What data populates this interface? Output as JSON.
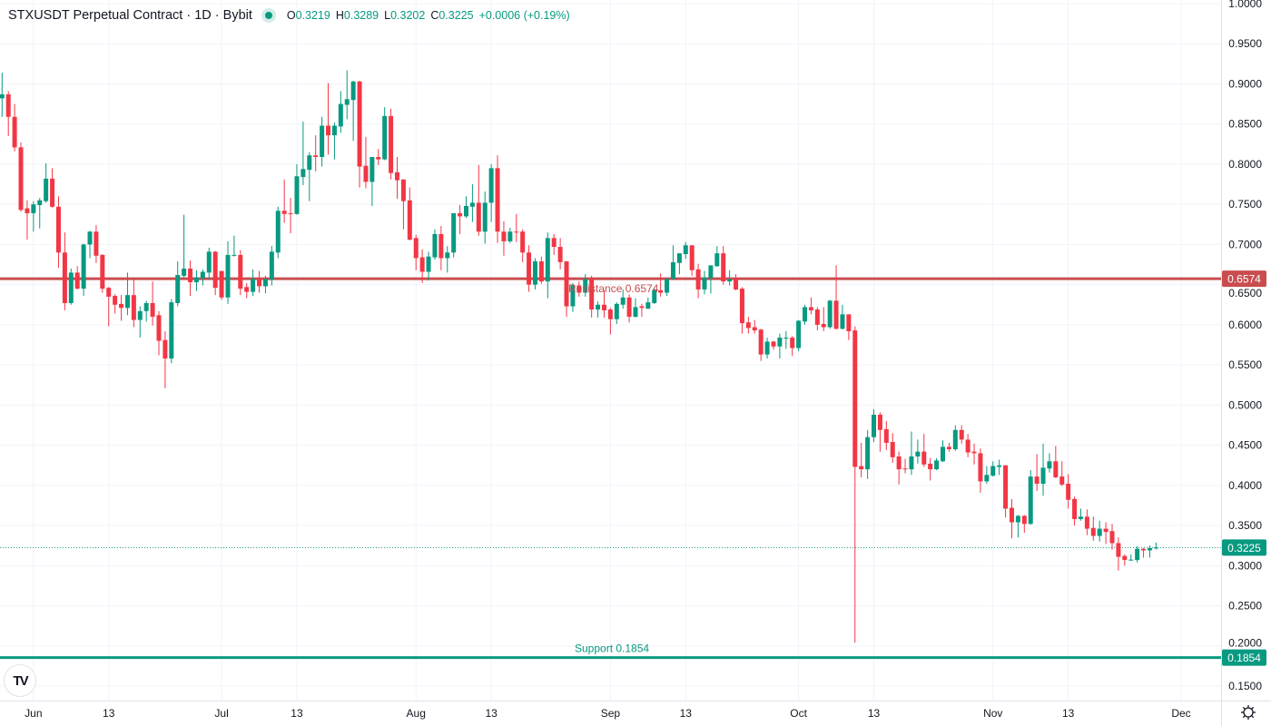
{
  "header": {
    "title": "STXUSDT Perpetual Contract · 1D · Bybit",
    "o_label": "O",
    "o_value": "0.3219",
    "h_label": "H",
    "h_value": "0.3289",
    "l_label": "L",
    "l_value": "0.3202",
    "c_label": "C",
    "c_value": "0.3225",
    "change": "+0.0006 (+0.19%)"
  },
  "logo": "TV",
  "icons": {
    "settings": "gear-icon",
    "status": "market-open-dot"
  },
  "colors": {
    "up": "#089981",
    "down": "#f23645",
    "resistance": "#c94d4f",
    "support": "#089981",
    "grid": "#f0f3fa",
    "text": "#131722"
  },
  "chart_data": {
    "type": "candlestick",
    "title": "STXUSDT Perpetual Contract · 1D · Bybit",
    "ylim": [
      0.15,
      1.0
    ],
    "y_ticks": [
      "0.1500",
      "0.2000",
      "0.2500",
      "0.3000",
      "0.3500",
      "0.4000",
      "0.4500",
      "0.5000",
      "0.5500",
      "0.6000",
      "0.6500",
      "0.7000",
      "0.7500",
      "0.8000",
      "0.8500",
      "0.9000",
      "0.9500",
      "1.0000"
    ],
    "x_ticks": [
      {
        "label": "Jun",
        "index": 5
      },
      {
        "label": "13",
        "index": 17
      },
      {
        "label": "Jul",
        "index": 35
      },
      {
        "label": "13",
        "index": 47
      },
      {
        "label": "Aug",
        "index": 66
      },
      {
        "label": "13",
        "index": 78
      },
      {
        "label": "Sep",
        "index": 97
      },
      {
        "label": "13",
        "index": 109
      },
      {
        "label": "Oct",
        "index": 127
      },
      {
        "label": "13",
        "index": 139
      },
      {
        "label": "Nov",
        "index": 158
      },
      {
        "label": "13",
        "index": 170
      },
      {
        "label": "Dec",
        "index": 188
      }
    ],
    "levels": [
      {
        "name": "resistance",
        "label": "Resistance 0.6574",
        "price": 0.6574,
        "tag": "0.6574"
      },
      {
        "name": "support",
        "label": "Support 0.1854",
        "price": 0.1854,
        "tag": "0.1854"
      }
    ],
    "last_price": {
      "price": 0.3225,
      "tag": "0.3225"
    },
    "candles": [
      [
        0.882,
        0.914,
        0.859,
        0.887
      ],
      [
        0.887,
        0.891,
        0.835,
        0.859
      ],
      [
        0.859,
        0.875,
        0.816,
        0.821
      ],
      [
        0.821,
        0.827,
        0.741,
        0.743
      ],
      [
        0.745,
        0.755,
        0.706,
        0.739
      ],
      [
        0.739,
        0.754,
        0.716,
        0.75
      ],
      [
        0.749,
        0.758,
        0.72,
        0.755
      ],
      [
        0.754,
        0.801,
        0.752,
        0.782
      ],
      [
        0.782,
        0.795,
        0.746,
        0.747
      ],
      [
        0.747,
        0.76,
        0.671,
        0.69
      ],
      [
        0.69,
        0.715,
        0.618,
        0.627
      ],
      [
        0.627,
        0.67,
        0.625,
        0.665
      ],
      [
        0.665,
        0.673,
        0.644,
        0.645
      ],
      [
        0.645,
        0.701,
        0.636,
        0.7
      ],
      [
        0.7,
        0.717,
        0.683,
        0.716
      ],
      [
        0.716,
        0.724,
        0.677,
        0.686
      ],
      [
        0.687,
        0.688,
        0.64,
        0.645
      ],
      [
        0.646,
        0.647,
        0.598,
        0.635
      ],
      [
        0.636,
        0.638,
        0.614,
        0.625
      ],
      [
        0.626,
        0.637,
        0.605,
        0.621
      ],
      [
        0.621,
        0.665,
        0.612,
        0.637
      ],
      [
        0.637,
        0.657,
        0.597,
        0.606
      ],
      [
        0.606,
        0.623,
        0.584,
        0.617
      ],
      [
        0.617,
        0.63,
        0.604,
        0.627
      ],
      [
        0.627,
        0.654,
        0.599,
        0.61
      ],
      [
        0.612,
        0.617,
        0.562,
        0.58
      ],
      [
        0.581,
        0.592,
        0.521,
        0.558
      ],
      [
        0.558,
        0.632,
        0.552,
        0.628
      ],
      [
        0.627,
        0.679,
        0.623,
        0.662
      ],
      [
        0.661,
        0.737,
        0.658,
        0.67
      ],
      [
        0.67,
        0.68,
        0.636,
        0.653
      ],
      [
        0.653,
        0.668,
        0.642,
        0.659
      ],
      [
        0.658,
        0.669,
        0.649,
        0.666
      ],
      [
        0.665,
        0.696,
        0.656,
        0.691
      ],
      [
        0.691,
        0.692,
        0.637,
        0.646
      ],
      [
        0.667,
        0.667,
        0.631,
        0.634
      ],
      [
        0.634,
        0.704,
        0.626,
        0.687
      ],
      [
        0.686,
        0.711,
        0.685,
        0.687
      ],
      [
        0.687,
        0.693,
        0.637,
        0.645
      ],
      [
        0.647,
        0.652,
        0.633,
        0.641
      ],
      [
        0.641,
        0.669,
        0.636,
        0.657
      ],
      [
        0.657,
        0.667,
        0.64,
        0.648
      ],
      [
        0.648,
        0.661,
        0.639,
        0.657
      ],
      [
        0.656,
        0.698,
        0.649,
        0.691
      ],
      [
        0.69,
        0.747,
        0.683,
        0.742
      ],
      [
        0.742,
        0.781,
        0.727,
        0.738
      ],
      [
        0.739,
        0.758,
        0.714,
        0.738
      ],
      [
        0.738,
        0.8,
        0.737,
        0.785
      ],
      [
        0.784,
        0.853,
        0.774,
        0.794
      ],
      [
        0.793,
        0.815,
        0.754,
        0.811
      ],
      [
        0.811,
        0.836,
        0.791,
        0.809
      ],
      [
        0.809,
        0.859,
        0.797,
        0.848
      ],
      [
        0.848,
        0.901,
        0.812,
        0.836
      ],
      [
        0.836,
        0.852,
        0.806,
        0.848
      ],
      [
        0.847,
        0.891,
        0.839,
        0.875
      ],
      [
        0.874,
        0.917,
        0.856,
        0.881
      ],
      [
        0.88,
        0.904,
        0.829,
        0.903
      ],
      [
        0.903,
        0.904,
        0.771,
        0.797
      ],
      [
        0.798,
        0.834,
        0.77,
        0.778
      ],
      [
        0.778,
        0.809,
        0.748,
        0.809
      ],
      [
        0.809,
        0.819,
        0.799,
        0.806
      ],
      [
        0.806,
        0.871,
        0.805,
        0.86
      ],
      [
        0.86,
        0.869,
        0.781,
        0.789
      ],
      [
        0.79,
        0.809,
        0.757,
        0.78
      ],
      [
        0.781,
        0.781,
        0.719,
        0.754
      ],
      [
        0.755,
        0.771,
        0.705,
        0.706
      ],
      [
        0.708,
        0.712,
        0.668,
        0.683
      ],
      [
        0.684,
        0.694,
        0.652,
        0.666
      ],
      [
        0.666,
        0.691,
        0.655,
        0.685
      ],
      [
        0.684,
        0.719,
        0.681,
        0.713
      ],
      [
        0.713,
        0.723,
        0.668,
        0.683
      ],
      [
        0.683,
        0.698,
        0.665,
        0.69
      ],
      [
        0.69,
        0.739,
        0.684,
        0.739
      ],
      [
        0.739,
        0.749,
        0.713,
        0.735
      ],
      [
        0.735,
        0.76,
        0.733,
        0.748
      ],
      [
        0.747,
        0.775,
        0.728,
        0.752
      ],
      [
        0.752,
        0.799,
        0.711,
        0.716
      ],
      [
        0.716,
        0.766,
        0.701,
        0.752
      ],
      [
        0.752,
        0.8,
        0.728,
        0.795
      ],
      [
        0.795,
        0.811,
        0.702,
        0.716
      ],
      [
        0.716,
        0.729,
        0.686,
        0.704
      ],
      [
        0.704,
        0.721,
        0.702,
        0.716
      ],
      [
        0.716,
        0.738,
        0.703,
        0.715
      ],
      [
        0.716,
        0.719,
        0.678,
        0.69
      ],
      [
        0.69,
        0.699,
        0.641,
        0.65
      ],
      [
        0.65,
        0.683,
        0.644,
        0.679
      ],
      [
        0.679,
        0.685,
        0.651,
        0.654
      ],
      [
        0.654,
        0.715,
        0.633,
        0.708
      ],
      [
        0.708,
        0.713,
        0.687,
        0.697
      ],
      [
        0.697,
        0.708,
        0.669,
        0.678
      ],
      [
        0.679,
        0.679,
        0.61,
        0.623
      ],
      [
        0.623,
        0.652,
        0.616,
        0.649
      ],
      [
        0.649,
        0.654,
        0.635,
        0.64
      ],
      [
        0.64,
        0.663,
        0.635,
        0.657
      ],
      [
        0.657,
        0.661,
        0.609,
        0.619
      ],
      [
        0.619,
        0.629,
        0.609,
        0.625
      ],
      [
        0.625,
        0.643,
        0.609,
        0.618
      ],
      [
        0.619,
        0.621,
        0.588,
        0.607
      ],
      [
        0.607,
        0.628,
        0.601,
        0.626
      ],
      [
        0.625,
        0.644,
        0.62,
        0.634
      ],
      [
        0.634,
        0.638,
        0.603,
        0.61
      ],
      [
        0.61,
        0.633,
        0.609,
        0.622
      ],
      [
        0.623,
        0.626,
        0.61,
        0.621
      ],
      [
        0.62,
        0.634,
        0.62,
        0.628
      ],
      [
        0.627,
        0.646,
        0.626,
        0.643
      ],
      [
        0.643,
        0.664,
        0.635,
        0.64
      ],
      [
        0.64,
        0.658,
        0.636,
        0.657
      ],
      [
        0.657,
        0.699,
        0.656,
        0.678
      ],
      [
        0.677,
        0.689,
        0.663,
        0.689
      ],
      [
        0.688,
        0.703,
        0.682,
        0.699
      ],
      [
        0.699,
        0.699,
        0.661,
        0.668
      ],
      [
        0.669,
        0.676,
        0.633,
        0.644
      ],
      [
        0.644,
        0.667,
        0.638,
        0.659
      ],
      [
        0.658,
        0.674,
        0.639,
        0.674
      ],
      [
        0.673,
        0.698,
        0.672,
        0.689
      ],
      [
        0.689,
        0.698,
        0.65,
        0.654
      ],
      [
        0.654,
        0.668,
        0.649,
        0.657
      ],
      [
        0.657,
        0.663,
        0.643,
        0.644
      ],
      [
        0.645,
        0.647,
        0.589,
        0.602
      ],
      [
        0.603,
        0.61,
        0.589,
        0.596
      ],
      [
        0.597,
        0.606,
        0.589,
        0.593
      ],
      [
        0.594,
        0.595,
        0.555,
        0.563
      ],
      [
        0.563,
        0.584,
        0.558,
        0.579
      ],
      [
        0.579,
        0.58,
        0.569,
        0.573
      ],
      [
        0.573,
        0.589,
        0.558,
        0.584
      ],
      [
        0.584,
        0.592,
        0.57,
        0.584
      ],
      [
        0.584,
        0.586,
        0.561,
        0.571
      ],
      [
        0.571,
        0.606,
        0.567,
        0.605
      ],
      [
        0.604,
        0.625,
        0.6,
        0.622
      ],
      [
        0.622,
        0.634,
        0.613,
        0.618
      ],
      [
        0.619,
        0.622,
        0.593,
        0.6
      ],
      [
        0.601,
        0.622,
        0.592,
        0.597
      ],
      [
        0.597,
        0.631,
        0.595,
        0.63
      ],
      [
        0.63,
        0.674,
        0.594,
        0.595
      ],
      [
        0.595,
        0.625,
        0.594,
        0.613
      ],
      [
        0.613,
        0.613,
        0.581,
        0.592
      ],
      [
        0.593,
        0.598,
        0.204,
        0.423
      ],
      [
        0.424,
        0.453,
        0.41,
        0.42
      ],
      [
        0.42,
        0.469,
        0.408,
        0.46
      ],
      [
        0.46,
        0.495,
        0.454,
        0.488
      ],
      [
        0.488,
        0.491,
        0.442,
        0.469
      ],
      [
        0.47,
        0.48,
        0.444,
        0.453
      ],
      [
        0.454,
        0.465,
        0.428,
        0.435
      ],
      [
        0.436,
        0.442,
        0.401,
        0.42
      ],
      [
        0.421,
        0.433,
        0.415,
        0.42
      ],
      [
        0.42,
        0.467,
        0.413,
        0.436
      ],
      [
        0.436,
        0.457,
        0.427,
        0.442
      ],
      [
        0.442,
        0.464,
        0.423,
        0.426
      ],
      [
        0.427,
        0.434,
        0.406,
        0.42
      ],
      [
        0.42,
        0.434,
        0.419,
        0.431
      ],
      [
        0.43,
        0.456,
        0.429,
        0.448
      ],
      [
        0.448,
        0.453,
        0.442,
        0.445
      ],
      [
        0.445,
        0.475,
        0.443,
        0.469
      ],
      [
        0.469,
        0.475,
        0.452,
        0.457
      ],
      [
        0.457,
        0.464,
        0.435,
        0.441
      ],
      [
        0.442,
        0.452,
        0.426,
        0.44
      ],
      [
        0.44,
        0.446,
        0.391,
        0.405
      ],
      [
        0.405,
        0.424,
        0.402,
        0.413
      ],
      [
        0.412,
        0.43,
        0.411,
        0.424
      ],
      [
        0.423,
        0.432,
        0.413,
        0.425
      ],
      [
        0.425,
        0.425,
        0.36,
        0.371
      ],
      [
        0.372,
        0.383,
        0.334,
        0.354
      ],
      [
        0.354,
        0.363,
        0.335,
        0.362
      ],
      [
        0.362,
        0.363,
        0.341,
        0.352
      ],
      [
        0.352,
        0.419,
        0.351,
        0.411
      ],
      [
        0.411,
        0.439,
        0.393,
        0.402
      ],
      [
        0.402,
        0.452,
        0.387,
        0.422
      ],
      [
        0.421,
        0.44,
        0.416,
        0.43
      ],
      [
        0.43,
        0.449,
        0.409,
        0.41
      ],
      [
        0.411,
        0.43,
        0.399,
        0.401
      ],
      [
        0.402,
        0.414,
        0.371,
        0.382
      ],
      [
        0.383,
        0.386,
        0.35,
        0.358
      ],
      [
        0.358,
        0.371,
        0.356,
        0.361
      ],
      [
        0.361,
        0.37,
        0.338,
        0.346
      ],
      [
        0.347,
        0.361,
        0.331,
        0.337
      ],
      [
        0.337,
        0.356,
        0.33,
        0.346
      ],
      [
        0.346,
        0.354,
        0.327,
        0.342
      ],
      [
        0.343,
        0.352,
        0.32,
        0.328
      ],
      [
        0.328,
        0.335,
        0.294,
        0.311
      ],
      [
        0.312,
        0.314,
        0.3,
        0.307
      ],
      [
        0.307,
        0.314,
        0.306,
        0.3075
      ],
      [
        0.307,
        0.324,
        0.304,
        0.321
      ],
      [
        0.321,
        0.322,
        0.31,
        0.319
      ],
      [
        0.319,
        0.325,
        0.31,
        0.322
      ],
      [
        0.3219,
        0.3289,
        0.3202,
        0.3225
      ]
    ]
  }
}
